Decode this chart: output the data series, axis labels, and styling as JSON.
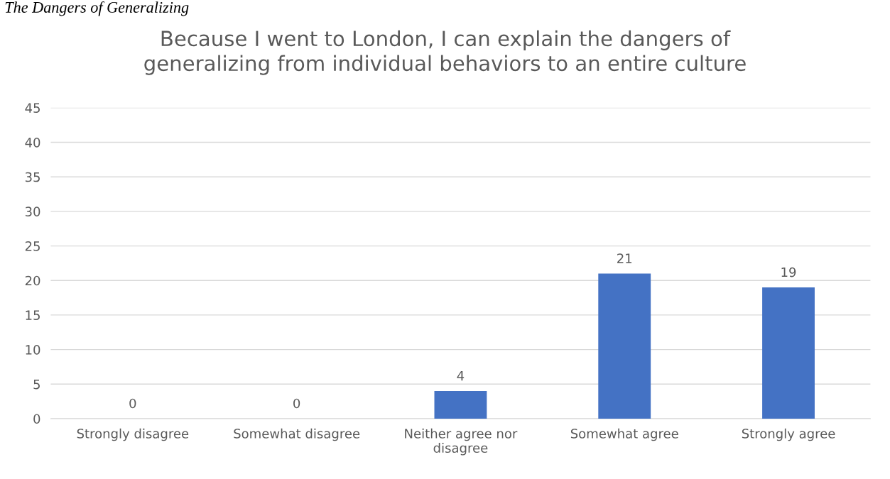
{
  "chart_data": {
    "type": "bar",
    "title": "Because I went to London, I can explain the dangers of generalizing from individual behaviors to an entire culture",
    "annotations": [
      "The Dangers of Generalizing"
    ],
    "categories": [
      "Strongly disagree",
      "Somewhat disagree",
      "Neither agree nor disagree",
      "Somewhat agree",
      "Strongly agree"
    ],
    "values": [
      0,
      0,
      4,
      21,
      19
    ],
    "color": "#4472c4",
    "ylim": [
      0,
      45
    ],
    "yticks": [
      0,
      5,
      10,
      15,
      20,
      25,
      30,
      35,
      40,
      45
    ],
    "grid": "y",
    "data_labels": true
  }
}
